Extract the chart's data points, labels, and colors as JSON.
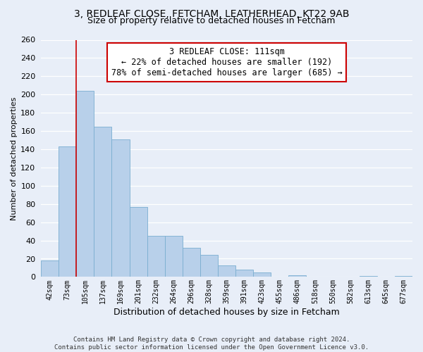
{
  "title_line1": "3, REDLEAF CLOSE, FETCHAM, LEATHERHEAD, KT22 9AB",
  "title_line2": "Size of property relative to detached houses in Fetcham",
  "xlabel": "Distribution of detached houses by size in Fetcham",
  "ylabel": "Number of detached properties",
  "bar_labels": [
    "42sqm",
    "73sqm",
    "105sqm",
    "137sqm",
    "169sqm",
    "201sqm",
    "232sqm",
    "264sqm",
    "296sqm",
    "328sqm",
    "359sqm",
    "391sqm",
    "423sqm",
    "455sqm",
    "486sqm",
    "518sqm",
    "550sqm",
    "582sqm",
    "613sqm",
    "645sqm",
    "677sqm"
  ],
  "bar_values": [
    18,
    143,
    204,
    165,
    151,
    77,
    45,
    45,
    32,
    24,
    13,
    8,
    5,
    0,
    2,
    0,
    0,
    0,
    1,
    0,
    1
  ],
  "bar_color": "#b8d0ea",
  "bar_edge_color": "#7aaed0",
  "vline_color": "#cc0000",
  "vline_x_index": 2,
  "ylim": [
    0,
    260
  ],
  "yticks": [
    0,
    20,
    40,
    60,
    80,
    100,
    120,
    140,
    160,
    180,
    200,
    220,
    240,
    260
  ],
  "annotation_line1": "3 REDLEAF CLOSE: 111sqm",
  "annotation_line2": "← 22% of detached houses are smaller (192)",
  "annotation_line3": "78% of semi-detached houses are larger (685) →",
  "annotation_box_color": "#ffffff",
  "annotation_box_edge": "#cc0000",
  "footer_line1": "Contains HM Land Registry data © Crown copyright and database right 2024.",
  "footer_line2": "Contains public sector information licensed under the Open Government Licence v3.0.",
  "background_color": "#e8eef8",
  "grid_color": "#ffffff",
  "title_fontsize": 10,
  "subtitle_fontsize": 9,
  "ylabel_fontsize": 8,
  "xlabel_fontsize": 9,
  "ytick_fontsize": 8,
  "xtick_fontsize": 7,
  "annotation_fontsize": 8.5,
  "footer_fontsize": 6.5
}
